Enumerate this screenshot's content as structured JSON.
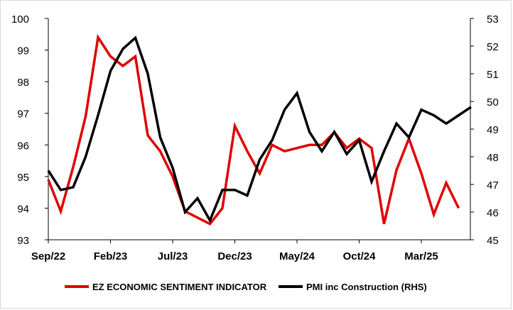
{
  "chart_data": {
    "type": "line",
    "x_tick_labels": [
      "Sep/22",
      "Feb/23",
      "Jul/23",
      "Dec/23",
      "May/24",
      "Oct/24",
      "Mar/25"
    ],
    "left_axis": {
      "ylim": [
        93,
        100
      ],
      "ticks": [
        93,
        94,
        95,
        96,
        97,
        98,
        99,
        100
      ]
    },
    "right_axis": {
      "ylim": [
        45,
        53
      ],
      "ticks": [
        45,
        46,
        47,
        48,
        49,
        50,
        51,
        52,
        53
      ]
    },
    "grid": false,
    "legend": {
      "placement": "bottom"
    },
    "series": [
      {
        "name": "EZ ECONOMIC SENTIMENT INDICATOR",
        "axis": "left",
        "color": "#e00000",
        "x": [
          "Sep/22",
          "Oct/22",
          "Nov/22",
          "Dec/22",
          "Jan/23",
          "Feb/23",
          "Mar/23",
          "Apr/23",
          "May/23",
          "Jun/23",
          "Jul/23",
          "Aug/23",
          "Sep/23",
          "Oct/23",
          "Nov/23",
          "Dec/23",
          "Jan/24",
          "Feb/24",
          "Mar/24",
          "Apr/24",
          "May/24",
          "Jun/24",
          "Jul/24",
          "Aug/24",
          "Sep/24",
          "Oct/24",
          "Nov/24",
          "Dec/24",
          "Jan/25",
          "Feb/25",
          "Mar/25",
          "Apr/25",
          "May/25",
          "Jun/25"
        ],
        "values": [
          94.9,
          93.9,
          95.3,
          96.9,
          99.4,
          98.8,
          98.5,
          98.8,
          96.3,
          95.8,
          95.0,
          93.9,
          93.7,
          93.5,
          94.0,
          96.6,
          95.8,
          95.1,
          96.0,
          95.8,
          95.9,
          96.0,
          96.0,
          96.4,
          95.9,
          96.2,
          95.9,
          93.5,
          95.2,
          96.2,
          95.1,
          93.8,
          94.8,
          94.0
        ]
      },
      {
        "name": "PMI inc Construction (RHS)",
        "axis": "right",
        "color": "#000000",
        "x": [
          "Sep/22",
          "Oct/22",
          "Nov/22",
          "Dec/22",
          "Jan/23",
          "Feb/23",
          "Mar/23",
          "Apr/23",
          "May/23",
          "Jun/23",
          "Jul/23",
          "Aug/23",
          "Sep/23",
          "Oct/23",
          "Nov/23",
          "Dec/23",
          "Jan/24",
          "Feb/24",
          "Mar/24",
          "Apr/24",
          "May/24",
          "Jun/24",
          "Jul/24",
          "Aug/24",
          "Sep/24",
          "Oct/24",
          "Nov/24",
          "Dec/24",
          "Jan/25",
          "Feb/25",
          "Mar/25",
          "Apr/25",
          "May/25",
          "Jun/25",
          "Jul/25"
        ],
        "values": [
          47.5,
          46.8,
          46.9,
          48.0,
          49.5,
          51.1,
          51.9,
          52.3,
          51.0,
          48.7,
          47.6,
          46.0,
          46.5,
          45.7,
          46.8,
          46.8,
          46.6,
          47.9,
          48.6,
          49.7,
          50.3,
          48.9,
          48.2,
          48.9,
          48.1,
          48.6,
          47.1,
          48.2,
          49.2,
          48.7,
          49.7,
          49.5,
          49.2,
          49.5,
          49.8
        ]
      }
    ]
  }
}
